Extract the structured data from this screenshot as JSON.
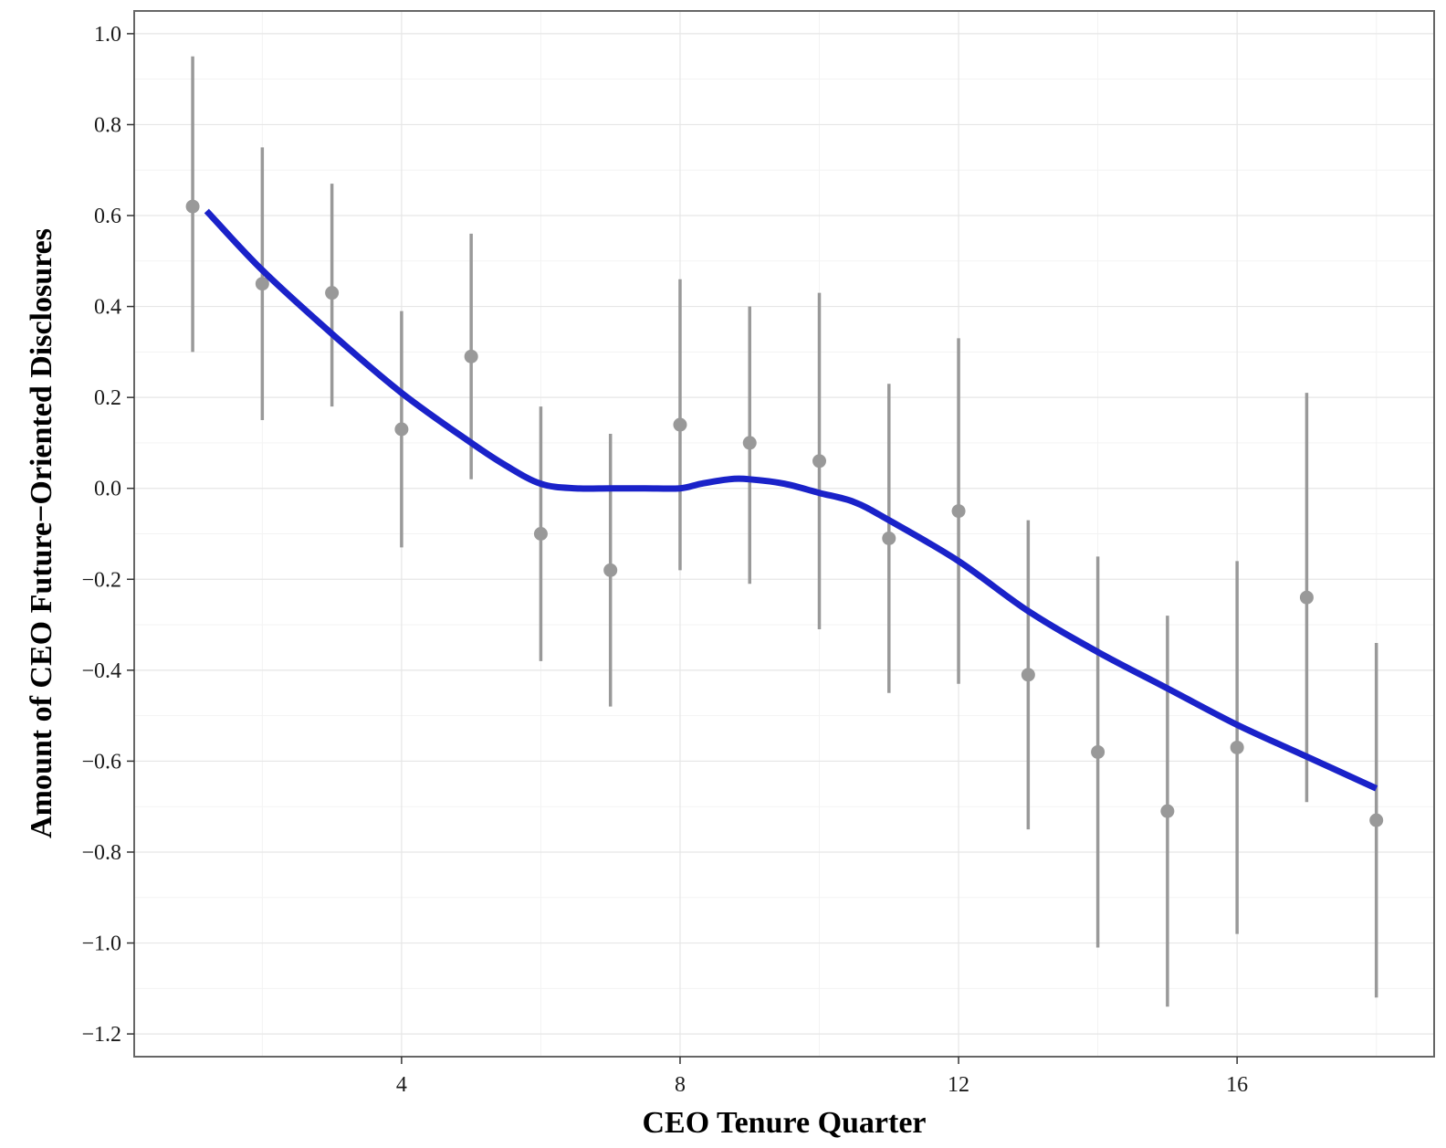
{
  "chart_data": {
    "type": "scatter",
    "title": "",
    "xlabel": "CEO Tenure Quarter",
    "ylabel": "Amount of CEO Future−Oriented Disclosures",
    "xlim": [
      0.16,
      18.83
    ],
    "ylim": [
      -1.25,
      1.05
    ],
    "x_ticks": [
      4,
      8,
      12,
      16
    ],
    "x_tick_labels": [
      "4",
      "8",
      "12",
      "16"
    ],
    "y_ticks": [
      1.0,
      0.8,
      0.6,
      0.4,
      0.2,
      0.0,
      -0.2,
      -0.4,
      -0.6,
      -0.8,
      -1.0,
      -1.2
    ],
    "y_tick_labels": [
      "1.0",
      "0.8",
      "0.6",
      "0.4",
      "0.2",
      "0.0",
      "−0.2",
      "−0.4",
      "−0.6",
      "−0.8",
      "−1.0",
      "−1.2"
    ],
    "grid": true,
    "legend": "none",
    "points": {
      "name": "",
      "color": "#999999",
      "x": [
        1,
        2,
        3,
        4,
        5,
        6,
        7,
        8,
        9,
        10,
        11,
        12,
        13,
        14,
        15,
        16,
        17,
        18
      ],
      "y": [
        0.62,
        0.45,
        0.43,
        0.13,
        0.29,
        -0.1,
        -0.18,
        0.14,
        0.1,
        0.06,
        -0.11,
        -0.05,
        -0.41,
        -0.58,
        -0.71,
        -0.57,
        -0.24,
        -0.73
      ],
      "lower": [
        0.3,
        0.15,
        0.18,
        -0.13,
        0.02,
        -0.38,
        -0.48,
        -0.18,
        -0.21,
        -0.31,
        -0.45,
        -0.43,
        -0.75,
        -1.01,
        -1.14,
        -0.98,
        -0.69,
        -1.12
      ],
      "upper": [
        0.95,
        0.75,
        0.67,
        0.39,
        0.56,
        0.18,
        0.12,
        0.46,
        0.4,
        0.43,
        0.23,
        0.33,
        -0.07,
        -0.15,
        -0.28,
        -0.16,
        0.21,
        -0.34
      ]
    },
    "smooth": {
      "name": "",
      "color": "#1a22c9",
      "x": [
        1.2,
        2,
        3,
        4,
        5,
        5.5,
        6,
        6.5,
        7,
        7.5,
        8,
        8.3,
        8.7,
        9,
        9.5,
        10,
        10.5,
        11,
        12,
        13,
        14,
        15,
        16,
        17,
        18
      ],
      "y": [
        0.61,
        0.48,
        0.34,
        0.21,
        0.1,
        0.05,
        0.01,
        0.0,
        0.0,
        0.0,
        0.0,
        0.01,
        0.02,
        0.02,
        0.01,
        -0.01,
        -0.03,
        -0.07,
        -0.16,
        -0.27,
        -0.36,
        -0.44,
        -0.52,
        -0.59,
        -0.66
      ]
    }
  }
}
